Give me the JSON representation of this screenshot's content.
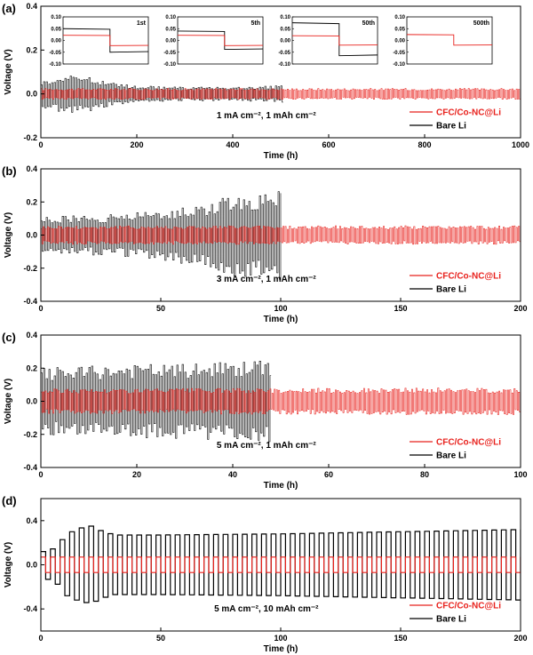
{
  "chart_data": [
    {
      "panel_label": "(a)",
      "type": "line",
      "xlabel": "Time (h)",
      "ylabel": "Voltage (V)",
      "xlim": [
        0,
        1000
      ],
      "ylim": [
        -0.2,
        0.4
      ],
      "xticks": [
        0,
        200,
        400,
        600,
        800,
        1000
      ],
      "yticks": [
        -0.2,
        0.0,
        0.2,
        0.4
      ],
      "annotation": "1 mA cm⁻², 1 mAh cm⁻²",
      "legend_position": "bottom-right",
      "series": [
        {
          "name": "CFC/Co-NC@Li",
          "color": "#e8211c",
          "t_end": 1000,
          "amplitude_profile": {
            "t": [
              0,
              1000
            ],
            "v": [
              0.02,
              0.02
            ]
          }
        },
        {
          "name": "Bare Li",
          "color": "#000000",
          "t_end": 505,
          "amplitude_profile": {
            "t": [
              0,
              50,
              100,
              150,
              200,
              300,
              400,
              505
            ],
            "v": [
              0.05,
              0.07,
              0.065,
              0.04,
              0.03,
              0.025,
              0.025,
              0.03
            ]
          }
        }
      ],
      "insets": [
        {
          "label": "1st",
          "xlim": [
            0,
            1
          ],
          "ylim": [
            -0.1,
            0.1
          ],
          "yticks": [
            -0.1,
            -0.05,
            0.0,
            0.05,
            0.1
          ],
          "red": [
            0.022,
            -0.022
          ],
          "black": [
            0.05,
            -0.05
          ]
        },
        {
          "label": "5th",
          "xlim": [
            0,
            1
          ],
          "ylim": [
            -0.1,
            0.1
          ],
          "yticks": [
            -0.1,
            -0.05,
            0.0,
            0.05,
            0.1
          ],
          "red": [
            0.022,
            -0.022
          ],
          "black": [
            0.04,
            -0.038
          ]
        },
        {
          "label": "50th",
          "xlim": [
            0,
            1
          ],
          "ylim": [
            -0.1,
            0.1
          ],
          "yticks": [
            -0.1,
            -0.05,
            0.0,
            0.05,
            0.1
          ],
          "red": [
            0.02,
            -0.02
          ],
          "black": [
            0.075,
            -0.065
          ]
        },
        {
          "label": "500th",
          "xlim": [
            0,
            1
          ],
          "ylim": [
            -0.1,
            0.1
          ],
          "yticks": [
            -0.1,
            -0.05,
            0.0,
            0.05,
            0.1
          ],
          "red": [
            0.025,
            -0.02
          ],
          "black": null
        }
      ]
    },
    {
      "panel_label": "(b)",
      "type": "line",
      "xlabel": "Time (h)",
      "ylabel": "Voltage (V)",
      "xlim": [
        0,
        200
      ],
      "ylim": [
        -0.4,
        0.4
      ],
      "xticks": [
        0,
        50,
        100,
        150,
        200
      ],
      "yticks": [
        -0.4,
        -0.2,
        0.0,
        0.2,
        0.4
      ],
      "annotation": "3 mA cm⁻², 1 mAh cm⁻²",
      "legend_position": "bottom-right",
      "series": [
        {
          "name": "CFC/Co-NC@Li",
          "color": "#e8211c",
          "t_end": 200,
          "amplitude_profile": {
            "t": [
              0,
              200
            ],
            "v": [
              0.045,
              0.045
            ]
          }
        },
        {
          "name": "Bare Li",
          "color": "#000000",
          "t_end": 100,
          "amplitude_profile": {
            "t": [
              0,
              30,
              50,
              70,
              80,
              90,
              100
            ],
            "v": [
              0.09,
              0.1,
              0.12,
              0.16,
              0.2,
              0.2,
              0.22
            ]
          }
        }
      ]
    },
    {
      "panel_label": "(c)",
      "type": "line",
      "xlabel": "Time (h)",
      "ylabel": "Voltage (V)",
      "xlim": [
        0,
        100
      ],
      "ylim": [
        -0.4,
        0.4
      ],
      "xticks": [
        0,
        20,
        40,
        60,
        80,
        100
      ],
      "yticks": [
        -0.4,
        -0.2,
        0.0,
        0.2,
        0.4
      ],
      "annotation": "5 mA cm⁻², 1 mAh cm⁻²",
      "legend_position": "bottom-right",
      "series": [
        {
          "name": "CFC/Co-NC@Li",
          "color": "#e8211c",
          "t_end": 100,
          "amplitude_profile": {
            "t": [
              0,
              100
            ],
            "v": [
              0.06,
              0.065
            ]
          }
        },
        {
          "name": "Bare Li",
          "color": "#000000",
          "t_end": 48,
          "amplitude_profile": {
            "t": [
              0,
              10,
              20,
              30,
              40,
              48
            ],
            "v": [
              0.16,
              0.17,
              0.18,
              0.18,
              0.19,
              0.2
            ]
          }
        }
      ]
    },
    {
      "panel_label": "(d)",
      "type": "line",
      "xlabel": "Time (h)",
      "ylabel": "Voltage (V)",
      "xlim": [
        0,
        200
      ],
      "ylim": [
        -0.6,
        0.6
      ],
      "xticks": [
        0,
        50,
        100,
        150,
        200
      ],
      "yticks": [
        -0.4,
        0.0,
        0.4
      ],
      "annotation": "5 mA cm⁻², 10 mAh cm⁻²",
      "legend_position": "bottom-right",
      "series": [
        {
          "name": "CFC/Co-NC@Li",
          "color": "#e8211c",
          "t_end": 200,
          "amplitude_profile": {
            "t": [
              0,
              200
            ],
            "v": [
              0.07,
              0.07
            ]
          }
        },
        {
          "name": "Bare Li",
          "color": "#000000",
          "t_end": 200,
          "amplitude_profile": {
            "t": [
              0,
              5,
              10,
              15,
              20,
              25,
              30,
              50,
              100,
              150,
              200
            ],
            "v": [
              0.12,
              0.15,
              0.28,
              0.33,
              0.35,
              0.3,
              0.27,
              0.27,
              0.28,
              0.3,
              0.32
            ]
          }
        }
      ]
    }
  ]
}
